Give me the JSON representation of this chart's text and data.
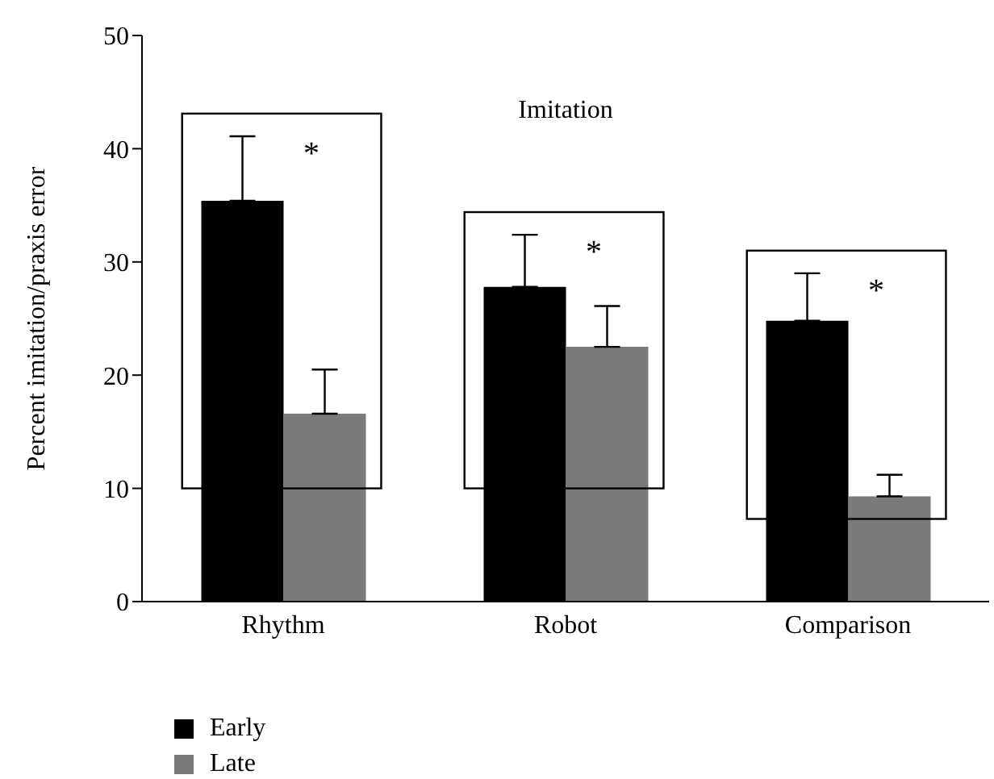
{
  "chart_data": {
    "type": "bar",
    "title": "Imitation",
    "ylabel": "Percent imitation/praxis error",
    "categories": [
      "Rhythm",
      "Robot",
      "Comparison"
    ],
    "series": [
      {
        "name": "Early",
        "color": "#000000",
        "values": [
          35.4,
          27.8,
          24.8
        ],
        "errors": [
          [
            35.4,
            41.1
          ],
          [
            27.8,
            32.4
          ],
          [
            24.8,
            29.0
          ]
        ]
      },
      {
        "name": "Late",
        "color": "#7a7a7a",
        "values": [
          16.6,
          22.5,
          9.3
        ],
        "errors": [
          [
            16.6,
            20.5
          ],
          [
            22.5,
            26.1
          ],
          [
            9.3,
            11.2
          ]
        ]
      }
    ],
    "ylim": [
      0,
      50
    ],
    "yticks": [
      0,
      10,
      20,
      30,
      40,
      50
    ],
    "grid": false,
    "legend": "bottom left",
    "annotations": [
      "*",
      "*",
      "*"
    ]
  }
}
